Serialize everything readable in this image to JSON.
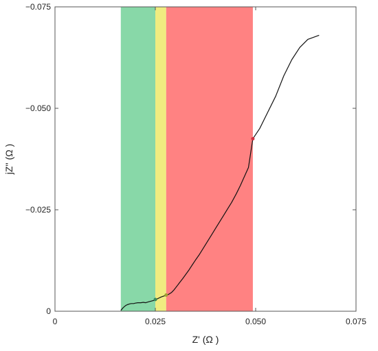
{
  "chart_data": {
    "type": "line",
    "title": "",
    "xlabel": "Z' (Ω )",
    "ylabel": "jZ'' (Ω )",
    "xlim": [
      0,
      0.075
    ],
    "ylim": [
      0,
      -0.075
    ],
    "y_axis_inverted": true,
    "grid": false,
    "legend": "none",
    "x_ticks": [
      0,
      0.025,
      0.05,
      0.075
    ],
    "x_tick_labels": [
      "0",
      "0.025",
      "0.050",
      "0.075"
    ],
    "y_ticks": [
      0,
      -0.025,
      -0.05,
      -0.075
    ],
    "y_tick_labels": [
      "0",
      "−0.025",
      "−0.050",
      "−0.075"
    ],
    "bands": [
      {
        "x_start": 0.0164,
        "x_end": 0.025,
        "color": "#88d8a8"
      },
      {
        "x_start": 0.025,
        "x_end": 0.0277,
        "color": "#f0ec80"
      },
      {
        "x_start": 0.0277,
        "x_end": 0.0493,
        "color": "#ff8282"
      }
    ],
    "series": [
      {
        "color": "#111111",
        "x": [
          0.0164,
          0.017,
          0.0176,
          0.018,
          0.0186,
          0.019,
          0.0196,
          0.02,
          0.0206,
          0.0214,
          0.022,
          0.0226,
          0.0232,
          0.0236,
          0.024,
          0.0244,
          0.0248,
          0.0252,
          0.0256,
          0.026,
          0.0264,
          0.027,
          0.0276,
          0.0282,
          0.029,
          0.0296,
          0.0304,
          0.031,
          0.0318,
          0.0326,
          0.0334,
          0.0342,
          0.035,
          0.036,
          0.037,
          0.038,
          0.039,
          0.04,
          0.041,
          0.042,
          0.043,
          0.044,
          0.0452,
          0.0462,
          0.0472,
          0.0482,
          0.0493,
          0.051,
          0.053,
          0.055,
          0.057,
          0.059,
          0.061,
          0.063,
          0.0658
        ],
        "y": [
          -0.0002,
          -0.0009,
          -0.0014,
          -0.0016,
          -0.0018,
          -0.0019,
          -0.0019,
          -0.002,
          -0.0021,
          -0.0021,
          -0.0022,
          -0.0021,
          -0.0023,
          -0.0024,
          -0.0025,
          -0.0026,
          -0.0027,
          -0.0029,
          -0.0031,
          -0.0033,
          -0.0035,
          -0.0037,
          -0.0039,
          -0.0041,
          -0.0046,
          -0.0052,
          -0.0062,
          -0.007,
          -0.008,
          -0.0091,
          -0.0102,
          -0.0114,
          -0.0126,
          -0.014,
          -0.0156,
          -0.0172,
          -0.0188,
          -0.0204,
          -0.022,
          -0.0236,
          -0.0252,
          -0.0268,
          -0.029,
          -0.031,
          -0.0332,
          -0.0354,
          -0.0425,
          -0.045,
          -0.049,
          -0.053,
          -0.058,
          -0.062,
          -0.065,
          -0.067,
          -0.068
        ]
      }
    ],
    "markers": [
      {
        "x": 0.025,
        "y": -0.0029,
        "color": "#3a8a5a"
      },
      {
        "x": 0.0277,
        "y": -0.004,
        "color": "#a0a030"
      },
      {
        "x": 0.0493,
        "y": -0.0425,
        "color": "#d03040"
      }
    ]
  }
}
